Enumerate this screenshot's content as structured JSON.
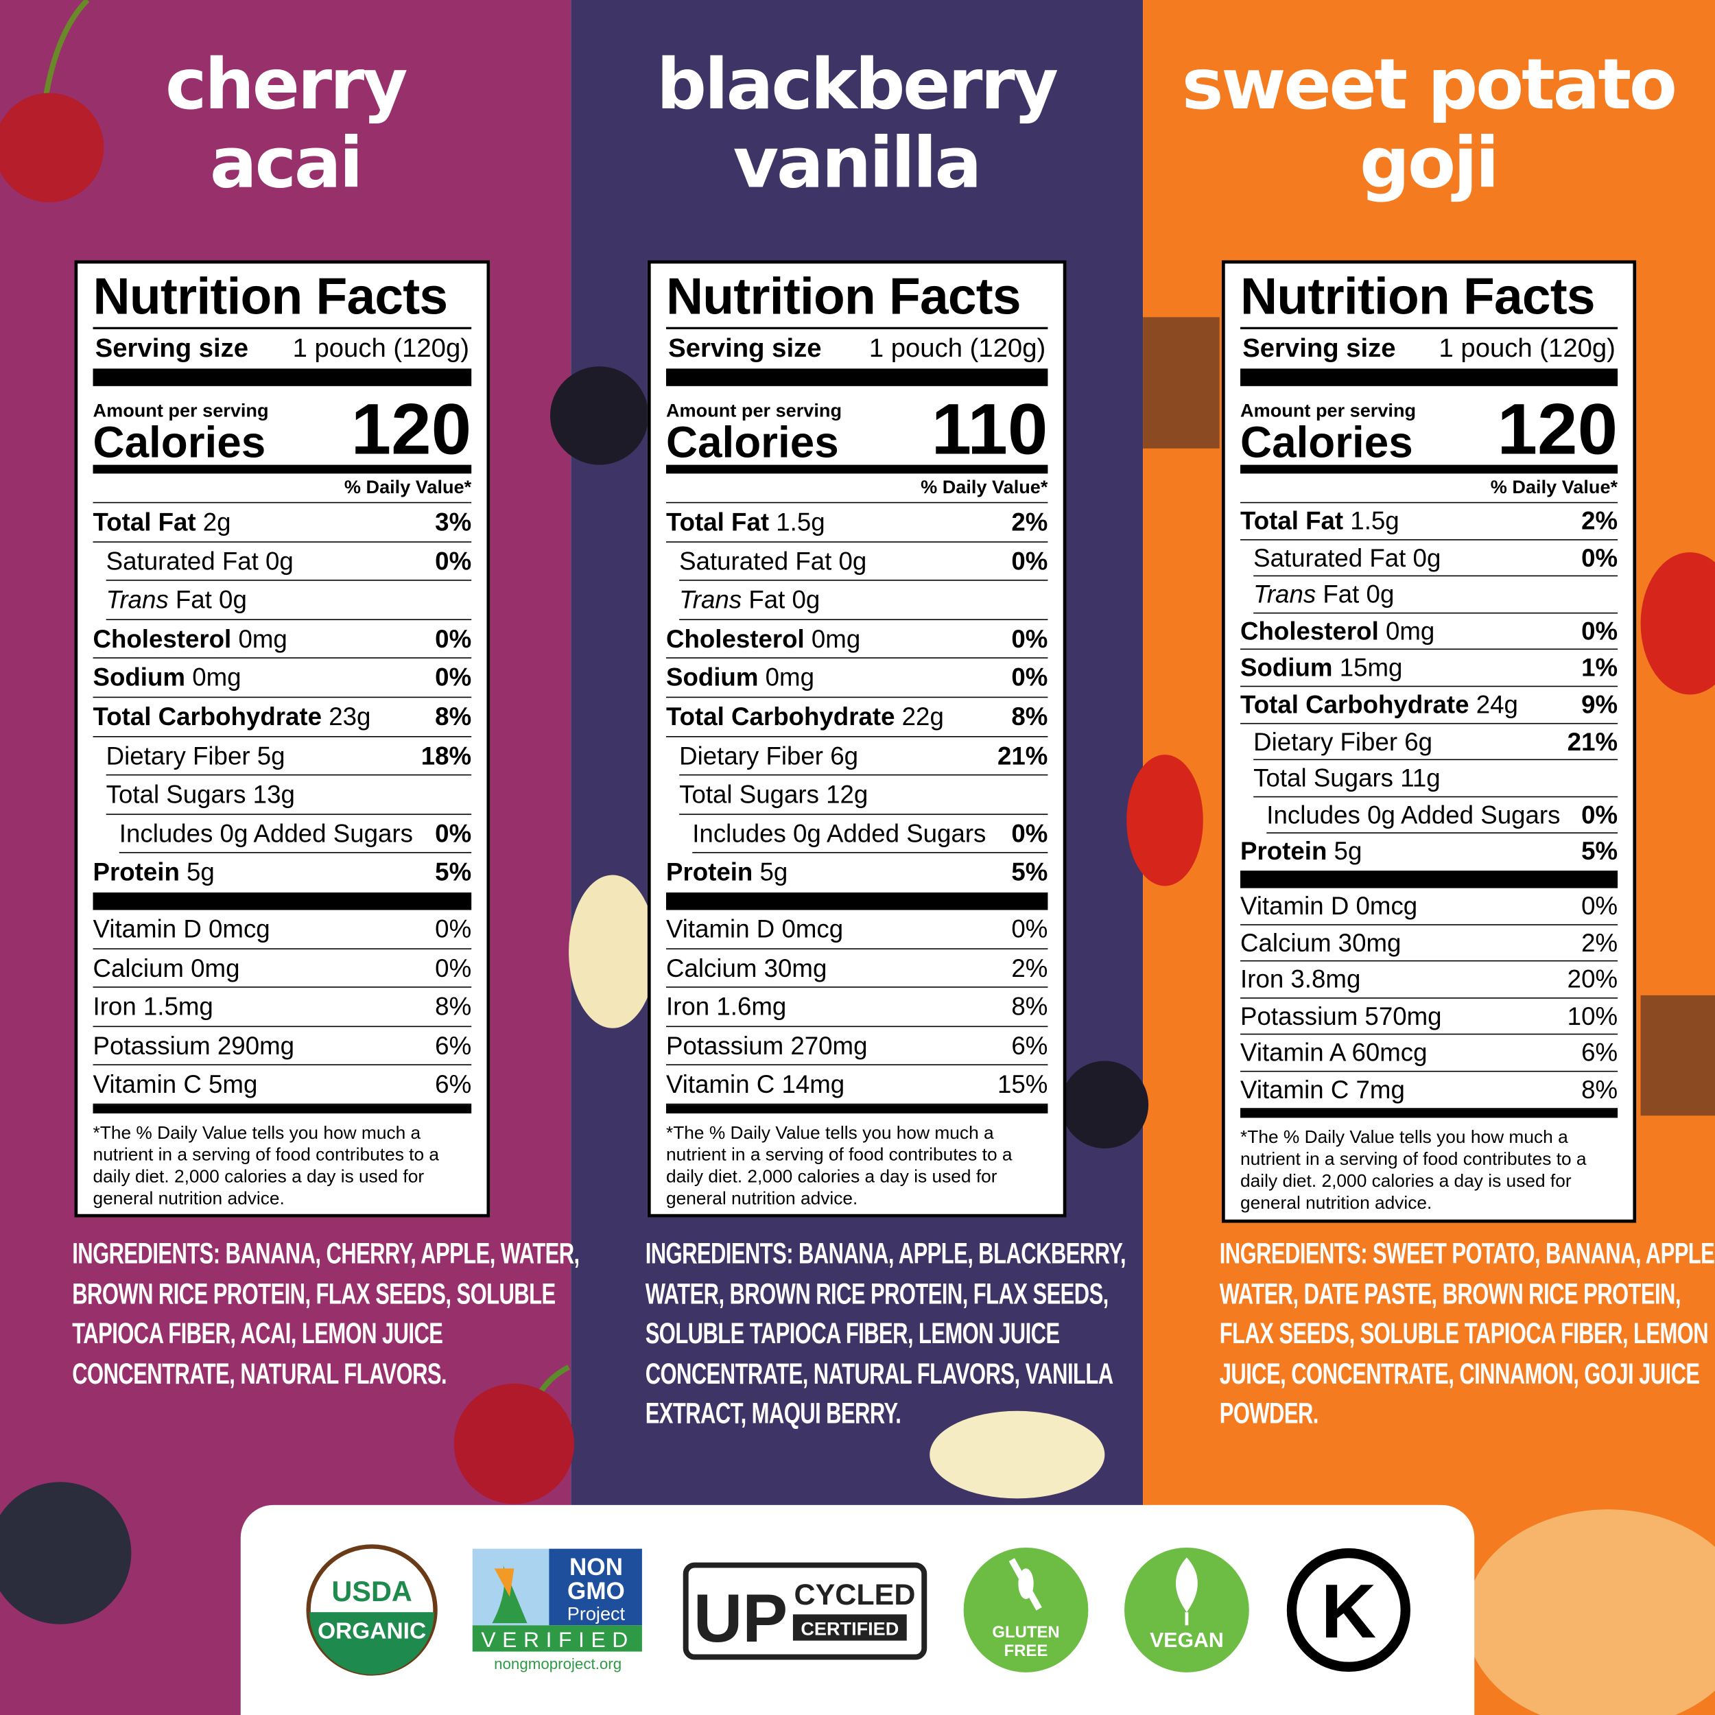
{
  "colors": {
    "cherry": "#98306b",
    "blackberry": "#3f3466",
    "sweet_potato": "#f47b20"
  },
  "flavors": [
    {
      "title": [
        "cherry",
        "acai"
      ],
      "label": {
        "title": "Nutrition Facts",
        "serving_label": "Serving size",
        "serving_value": "1 pouch (120g)",
        "amount_per_serving": "Amount per serving",
        "calories_label": "Calories",
        "calories": "120",
        "dv_header": "% Daily Value*",
        "nutrients": [
          {
            "b": "Total Fat",
            "a": "2g",
            "dv": "3%"
          },
          {
            "n": "Saturated Fat 0g",
            "dv": "0%",
            "ind": 1
          },
          {
            "it": "Trans",
            "n": " Fat 0g",
            "dv": "",
            "ind": 1
          },
          {
            "b": "Cholesterol",
            "a": "0mg",
            "dv": "0%"
          },
          {
            "b": "Sodium",
            "a": "0mg",
            "dv": "0%"
          },
          {
            "b": "Total Carbohydrate",
            "a": "23g",
            "dv": "8%"
          },
          {
            "n": "Dietary Fiber 5g",
            "dv": "18%",
            "ind": 1
          },
          {
            "n": "Total Sugars 13g",
            "dv": "",
            "ind": 1
          },
          {
            "n": "Includes 0g Added Sugars",
            "dv": "0%",
            "ind": 2
          },
          {
            "b": "Protein",
            "a": "5g",
            "dv": "5%"
          }
        ],
        "vitamins": [
          {
            "n": "Vitamin D 0mcg",
            "dv": "0%"
          },
          {
            "n": "Calcium 0mg",
            "dv": "0%"
          },
          {
            "n": "Iron 1.5mg",
            "dv": "8%"
          },
          {
            "n": "Potassium 290mg",
            "dv": "6%"
          },
          {
            "n": "Vitamin C 5mg",
            "dv": "6%"
          }
        ],
        "footnote": "*The % Daily Value tells you how much a nutrient in a serving of food contributes to a daily diet. 2,000 calories a day is used for general nutrition advice."
      },
      "ingredients": "INGREDIENTS: BANANA, CHERRY, APPLE, WATER, BROWN RICE PROTEIN, FLAX SEEDS, SOLUBLE TAPIOCA FIBER, ACAI, LEMON JUICE CONCENTRATE, NATURAL FLAVORS."
    },
    {
      "title": [
        "blackberry",
        "vanilla"
      ],
      "label": {
        "title": "Nutrition Facts",
        "serving_label": "Serving size",
        "serving_value": "1 pouch (120g)",
        "amount_per_serving": "Amount per serving",
        "calories_label": "Calories",
        "calories": "110",
        "dv_header": "% Daily Value*",
        "nutrients": [
          {
            "b": "Total Fat",
            "a": "1.5g",
            "dv": "2%"
          },
          {
            "n": "Saturated Fat 0g",
            "dv": "0%",
            "ind": 1
          },
          {
            "it": "Trans",
            "n": " Fat 0g",
            "dv": "",
            "ind": 1
          },
          {
            "b": "Cholesterol",
            "a": "0mg",
            "dv": "0%"
          },
          {
            "b": "Sodium",
            "a": "0mg",
            "dv": "0%"
          },
          {
            "b": "Total Carbohydrate",
            "a": "22g",
            "dv": "8%"
          },
          {
            "n": "Dietary Fiber 6g",
            "dv": "21%",
            "ind": 1
          },
          {
            "n": "Total Sugars 12g",
            "dv": "",
            "ind": 1
          },
          {
            "n": "Includes 0g Added Sugars",
            "dv": "0%",
            "ind": 2
          },
          {
            "b": "Protein",
            "a": "5g",
            "dv": "5%"
          }
        ],
        "vitamins": [
          {
            "n": "Vitamin D 0mcg",
            "dv": "0%"
          },
          {
            "n": "Calcium 30mg",
            "dv": "2%"
          },
          {
            "n": "Iron 1.6mg",
            "dv": "8%"
          },
          {
            "n": "Potassium 270mg",
            "dv": "6%"
          },
          {
            "n": "Vitamin C 14mg",
            "dv": "15%"
          }
        ],
        "footnote": "*The % Daily Value tells you how much a nutrient in a serving of food contributes to a daily diet. 2,000 calories a day is used for general nutrition advice."
      },
      "ingredients": "INGREDIENTS: BANANA, APPLE, BLACKBERRY, WATER, BROWN RICE PROTEIN, FLAX SEEDS, SOLUBLE TAPIOCA FIBER, LEMON JUICE CONCENTRATE, NATURAL FLAVORS, VANILLA EXTRACT, MAQUI BERRY."
    },
    {
      "title": [
        "sweet potato",
        "goji"
      ],
      "label": {
        "title": "Nutrition Facts",
        "serving_label": "Serving size",
        "serving_value": "1 pouch (120g)",
        "amount_per_serving": "Amount per serving",
        "calories_label": "Calories",
        "calories": "120",
        "dv_header": "% Daily Value*",
        "nutrients": [
          {
            "b": "Total Fat",
            "a": "1.5g",
            "dv": "2%"
          },
          {
            "n": "Saturated Fat 0g",
            "dv": "0%",
            "ind": 1
          },
          {
            "it": "Trans",
            "n": " Fat 0g",
            "dv": "",
            "ind": 1
          },
          {
            "b": "Cholesterol",
            "a": "0mg",
            "dv": "0%"
          },
          {
            "b": "Sodium",
            "a": "15mg",
            "dv": "1%"
          },
          {
            "b": "Total Carbohydrate",
            "a": "24g",
            "dv": "9%"
          },
          {
            "n": "Dietary Fiber 6g",
            "dv": "21%",
            "ind": 1
          },
          {
            "n": "Total Sugars 11g",
            "dv": "",
            "ind": 1
          },
          {
            "n": "Includes 0g Added Sugars",
            "dv": "0%",
            "ind": 2
          },
          {
            "b": "Protein",
            "a": "5g",
            "dv": "5%"
          }
        ],
        "vitamins": [
          {
            "n": "Vitamin D 0mcg",
            "dv": "0%"
          },
          {
            "n": "Calcium 30mg",
            "dv": "2%"
          },
          {
            "n": "Iron 3.8mg",
            "dv": "20%"
          },
          {
            "n": "Potassium 570mg",
            "dv": "10%"
          },
          {
            "n": "Vitamin A 60mcg",
            "dv": "6%"
          },
          {
            "n": "Vitamin C 7mg",
            "dv": "8%"
          }
        ],
        "footnote": "*The % Daily Value tells you how much a nutrient in a serving of food contributes to a daily diet. 2,000 calories a day is used for general nutrition advice."
      },
      "ingredients": "INGREDIENTS: SWEET POTATO, BANANA, APPLE, WATER, DATE PASTE, BROWN RICE PROTEIN, FLAX SEEDS, SOLUBLE TAPIOCA FIBER, LEMON JUICE, CONCENTRATE, CINNAMON, GOJI JUICE POWDER."
    }
  ],
  "badges": {
    "usda": [
      "USDA",
      "ORGANIC"
    ],
    "nongmo": {
      "top": [
        "NON",
        "GMO",
        "Project"
      ],
      "verified": "VERIFIED",
      "url": "nongmoproject.org"
    },
    "upcycled": {
      "up": "UP",
      "cycled": "CYCLED",
      "certified": "CERTIFIED"
    },
    "gluten": [
      "GLUTEN",
      "FREE"
    ],
    "vegan": "VEGAN",
    "kosher": "K"
  }
}
